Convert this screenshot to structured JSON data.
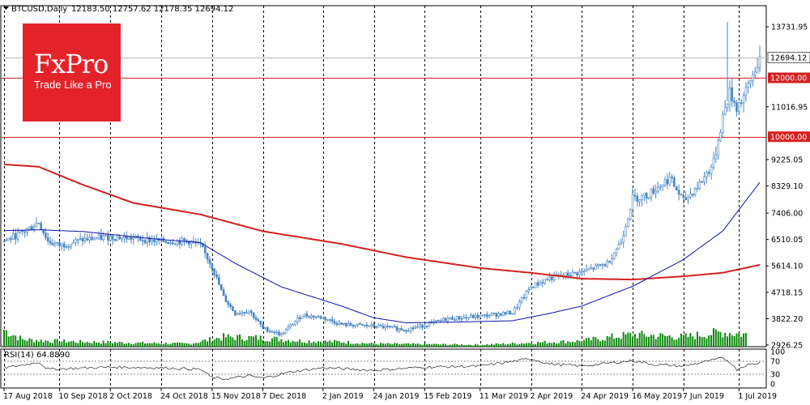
{
  "header": {
    "symbol": "BTCUSD,Daily",
    "ohlc": "12183.50 12757.62 12178.35 12694.12"
  },
  "logo": {
    "brand": "FxPro",
    "tagline": "Trade Like a Pro"
  },
  "colors": {
    "candle": "#4a86c2",
    "volume": "#0e8a0e",
    "ma_fast": "#0d12a8",
    "ma_slow": "#d42020",
    "level": "#d42020",
    "grid": "#000000",
    "rsi": "#000000"
  },
  "chart_data": [
    {
      "type": "line",
      "panel": "price",
      "x_start": "2018-08-17",
      "x_end": "2019-07-10",
      "x_tick_labels": [
        "17 Aug 2018",
        "10 Sep 2018",
        "2 Oct 2018",
        "24 Oct 2018",
        "15 Nov 2018",
        "7 Dec 2018",
        "2 Jan 2019",
        "24 Jan 2019",
        "15 Feb 2019",
        "11 Mar 2019",
        "2 Apr 2019",
        "24 Apr 2019",
        "16 May 2019",
        "7 Jun 2019",
        "1 Jul 2019"
      ],
      "x_tick_dates": [
        "2018-08-17",
        "2018-09-10",
        "2018-10-02",
        "2018-10-24",
        "2018-11-15",
        "2018-12-07",
        "2019-01-02",
        "2019-01-24",
        "2019-02-15",
        "2019-03-11",
        "2019-04-02",
        "2019-04-24",
        "2019-05-16",
        "2019-06-07",
        "2019-07-01"
      ],
      "y_tick_labels": [
        "13731.95",
        "11016.95",
        "9225.05",
        "8329.10",
        "7406.00",
        "6510.05",
        "5614.10",
        "4718.15",
        "3822.20",
        "2926.25"
      ],
      "y_ticks": [
        13731.95,
        11016.95,
        9225.05,
        8329.1,
        7406.0,
        6510.05,
        5614.1,
        4718.15,
        3822.2,
        2926.25
      ],
      "ylim": [
        2870,
        14450
      ],
      "price_levels": [
        {
          "label": "12694.12",
          "value": 12694.12
        },
        {
          "label": "12000.00",
          "value": 12000
        },
        {
          "label": "10000.00",
          "value": 10000
        }
      ],
      "price": {
        "dates": [
          "2018-08-17",
          "2018-08-25",
          "2018-09-01",
          "2018-09-05",
          "2018-09-10",
          "2018-09-20",
          "2018-10-02",
          "2018-10-12",
          "2018-10-24",
          "2018-11-05",
          "2018-11-10",
          "2018-11-15",
          "2018-11-20",
          "2018-11-25",
          "2018-12-01",
          "2018-12-07",
          "2018-12-15",
          "2018-12-24",
          "2019-01-02",
          "2019-01-10",
          "2019-01-24",
          "2019-02-07",
          "2019-02-15",
          "2019-02-25",
          "2019-03-11",
          "2019-03-25",
          "2019-04-02",
          "2019-04-10",
          "2019-04-24",
          "2019-05-05",
          "2019-05-11",
          "2019-05-16",
          "2019-05-22",
          "2019-06-01",
          "2019-06-07",
          "2019-06-14",
          "2019-06-20",
          "2019-06-24",
          "2019-06-27",
          "2019-06-30",
          "2019-07-04",
          "2019-07-10"
        ],
        "close": [
          6450,
          6750,
          7100,
          6450,
          6300,
          6500,
          6600,
          6550,
          6450,
          6450,
          6300,
          5600,
          4550,
          4000,
          4100,
          3500,
          3280,
          3950,
          3850,
          3620,
          3570,
          3450,
          3600,
          3820,
          3900,
          4030,
          4900,
          5200,
          5400,
          5700,
          6450,
          7900,
          8000,
          8600,
          7800,
          8400,
          9100,
          10700,
          11500,
          11000,
          11500,
          12694
        ]
      },
      "ma_fast": {
        "dates": [
          "2018-08-17",
          "2018-09-01",
          "2018-09-20",
          "2018-10-12",
          "2018-10-24",
          "2018-11-10",
          "2018-11-25",
          "2018-12-15",
          "2019-01-10",
          "2019-01-24",
          "2019-02-07",
          "2019-02-25",
          "2019-03-25",
          "2019-04-10",
          "2019-04-24",
          "2019-05-16",
          "2019-06-07",
          "2019-06-24",
          "2019-07-10"
        ],
        "values": [
          6810,
          6840,
          6780,
          6600,
          6510,
          6400,
          5700,
          4900,
          4250,
          3850,
          3680,
          3700,
          3750,
          4000,
          4250,
          4920,
          5830,
          6800,
          8450
        ]
      },
      "ma_slow": {
        "dates": [
          "2018-08-17",
          "2018-09-01",
          "2018-09-20",
          "2018-10-12",
          "2018-11-10",
          "2018-12-07",
          "2019-01-10",
          "2019-02-07",
          "2019-03-11",
          "2019-04-02",
          "2019-04-24",
          "2019-05-16",
          "2019-06-07",
          "2019-06-24",
          "2019-07-10"
        ],
        "values": [
          9060,
          8980,
          8370,
          7750,
          7360,
          6790,
          6360,
          5910,
          5540,
          5380,
          5180,
          5150,
          5260,
          5380,
          5650
        ]
      },
      "volume": {
        "dates": [
          "2018-08-17",
          "2018-08-25",
          "2018-09-05",
          "2018-09-20",
          "2018-10-12",
          "2018-11-05",
          "2018-11-20",
          "2018-12-07",
          "2018-12-24",
          "2019-01-10",
          "2019-01-24",
          "2019-02-15",
          "2019-03-11",
          "2019-04-02",
          "2019-04-24",
          "2019-05-16",
          "2019-06-07",
          "2019-06-24",
          "2019-07-04"
        ],
        "values": [
          0.35,
          0.15,
          0.12,
          0.1,
          0.08,
          0.06,
          0.2,
          0.18,
          0.12,
          0.1,
          0.06,
          0.05,
          0.04,
          0.08,
          0.12,
          0.25,
          0.2,
          0.3,
          0.25
        ]
      }
    },
    {
      "type": "line",
      "panel": "rsi",
      "title": "RSI(14) 64.8890",
      "y_tick_labels": [
        "100",
        "70",
        "30",
        "0"
      ],
      "y_ticks": [
        100,
        70,
        30,
        0
      ],
      "ylim": [
        0,
        100
      ],
      "dates": [
        "2018-08-17",
        "2018-08-25",
        "2018-09-01",
        "2018-09-05",
        "2018-09-15",
        "2018-10-02",
        "2018-10-24",
        "2018-11-10",
        "2018-11-15",
        "2018-11-20",
        "2018-12-01",
        "2018-12-07",
        "2018-12-20",
        "2019-01-02",
        "2019-01-24",
        "2019-02-15",
        "2019-03-11",
        "2019-04-02",
        "2019-04-10",
        "2019-04-24",
        "2019-05-16",
        "2019-05-25",
        "2019-06-07",
        "2019-06-24",
        "2019-06-27",
        "2019-06-30",
        "2019-07-04",
        "2019-07-10"
      ],
      "values": [
        50,
        58,
        68,
        45,
        48,
        52,
        50,
        45,
        20,
        15,
        25,
        18,
        38,
        50,
        42,
        52,
        55,
        78,
        62,
        55,
        72,
        60,
        55,
        80,
        68,
        45,
        58,
        65
      ]
    }
  ]
}
